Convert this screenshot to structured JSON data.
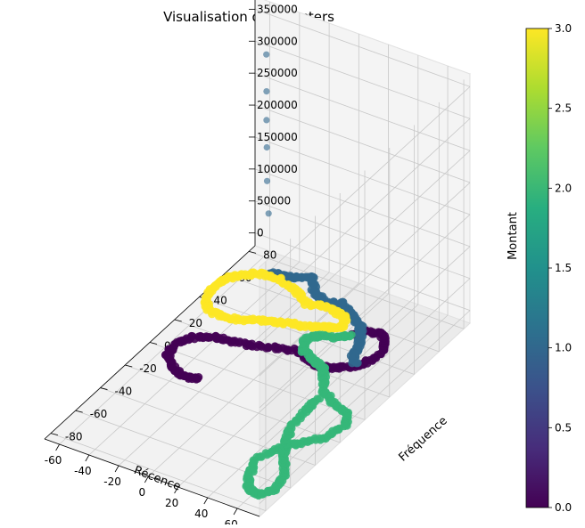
{
  "chart_data": {
    "type": "scatter",
    "projection": "3d",
    "title": "Visualisation des Clusters",
    "xlabel": "Récence",
    "ylabel": "Fréquence",
    "zlabel": "Montant",
    "xlim": [
      -70,
      75
    ],
    "ylim": [
      -85,
      85
    ],
    "zlim": [
      -20000,
      370000
    ],
    "x_ticks": [
      -60,
      -40,
      -20,
      0,
      20,
      40,
      60
    ],
    "y_ticks": [
      -80,
      -60,
      -40,
      -20,
      0,
      20,
      40,
      60,
      80
    ],
    "z_ticks": [
      0,
      50000,
      100000,
      150000,
      200000,
      250000,
      300000,
      350000
    ],
    "grid": true,
    "colormap": "viridis",
    "colorbar": {
      "min": 0.0,
      "max": 3.0,
      "ticks": [
        "0.0",
        "0.5",
        "1.0",
        "1.5",
        "2.0",
        "2.5",
        "3.0"
      ]
    },
    "clusters": [
      {
        "label": 0,
        "color": "#440154",
        "path": [
          [
            -20,
            -20,
            0
          ],
          [
            -30,
            -22,
            0
          ],
          [
            -40,
            -18,
            0
          ],
          [
            -48,
            -12,
            0
          ],
          [
            -50,
            -5,
            0
          ],
          [
            -45,
            5,
            0
          ],
          [
            -35,
            10,
            0
          ],
          [
            -20,
            12,
            0
          ],
          [
            -5,
            15,
            0
          ],
          [
            10,
            20,
            0
          ],
          [
            20,
            18,
            0
          ],
          [
            30,
            15,
            0
          ],
          [
            40,
            18,
            0
          ],
          [
            50,
            25,
            0
          ],
          [
            55,
            35,
            0
          ],
          [
            52,
            45,
            0
          ],
          [
            45,
            50,
            0
          ],
          [
            35,
            48,
            0
          ],
          [
            30,
            42,
            0
          ]
        ]
      },
      {
        "label": 1,
        "color": "#31688e",
        "path": [
          [
            -40,
            60,
            5000
          ],
          [
            -35,
            60,
            10000
          ],
          [
            -28,
            58,
            15000
          ],
          [
            -20,
            58,
            20000
          ],
          [
            -10,
            60,
            25000
          ],
          [
            -5,
            55,
            15000
          ],
          [
            2,
            55,
            5000
          ],
          [
            10,
            60,
            2000
          ],
          [
            20,
            55,
            0
          ],
          [
            30,
            50,
            0
          ],
          [
            35,
            45,
            0
          ],
          [
            40,
            38,
            0
          ],
          [
            42,
            30,
            0
          ],
          [
            48,
            25,
            0
          ]
        ],
        "outliers": [
          [
            -40,
            60,
            100000
          ],
          [
            -41,
            60,
            150000
          ],
          [
            -42,
            61,
            200000
          ],
          [
            -43,
            62,
            240000
          ],
          [
            -43,
            62,
            285000
          ],
          [
            -44,
            63,
            340000
          ]
        ]
      },
      {
        "label": 2,
        "color": "#35b779",
        "path": [
          [
            30,
            42,
            0
          ],
          [
            25,
            38,
            0
          ],
          [
            15,
            35,
            0
          ],
          [
            10,
            30,
            0
          ],
          [
            15,
            22,
            0
          ],
          [
            25,
            18,
            0
          ],
          [
            35,
            15,
            0
          ],
          [
            40,
            8,
            0
          ],
          [
            48,
            0,
            0
          ],
          [
            58,
            -5,
            0
          ],
          [
            70,
            -8,
            0
          ],
          [
            75,
            -15,
            0
          ],
          [
            72,
            -28,
            0
          ],
          [
            62,
            -38,
            0
          ],
          [
            55,
            -45,
            0
          ],
          [
            50,
            -58,
            0
          ],
          [
            55,
            -70,
            0
          ],
          [
            62,
            -78,
            0
          ],
          [
            70,
            -80,
            0
          ],
          [
            75,
            -72,
            0
          ],
          [
            72,
            -60,
            0
          ],
          [
            62,
            -50,
            0
          ],
          [
            55,
            -40,
            0
          ],
          [
            50,
            -30,
            0
          ],
          [
            48,
            -15,
            0
          ],
          [
            48,
            -5,
            0
          ]
        ]
      },
      {
        "label": 3,
        "color": "#fde725",
        "path": [
          [
            -60,
            50,
            0
          ],
          [
            -62,
            40,
            0
          ],
          [
            -58,
            30,
            0
          ],
          [
            -50,
            25,
            0
          ],
          [
            -40,
            25,
            0
          ],
          [
            -28,
            28,
            0
          ],
          [
            -18,
            32,
            0
          ],
          [
            -8,
            35,
            0
          ],
          [
            5,
            38,
            0
          ],
          [
            15,
            42,
            0
          ],
          [
            22,
            45,
            0
          ],
          [
            18,
            52,
            0
          ],
          [
            5,
            55,
            0
          ],
          [
            -8,
            52,
            0
          ],
          [
            -20,
            58,
            0
          ],
          [
            -35,
            62,
            0
          ],
          [
            -48,
            60,
            0
          ],
          [
            -55,
            55,
            0
          ],
          [
            -60,
            50,
            0
          ]
        ]
      }
    ]
  }
}
